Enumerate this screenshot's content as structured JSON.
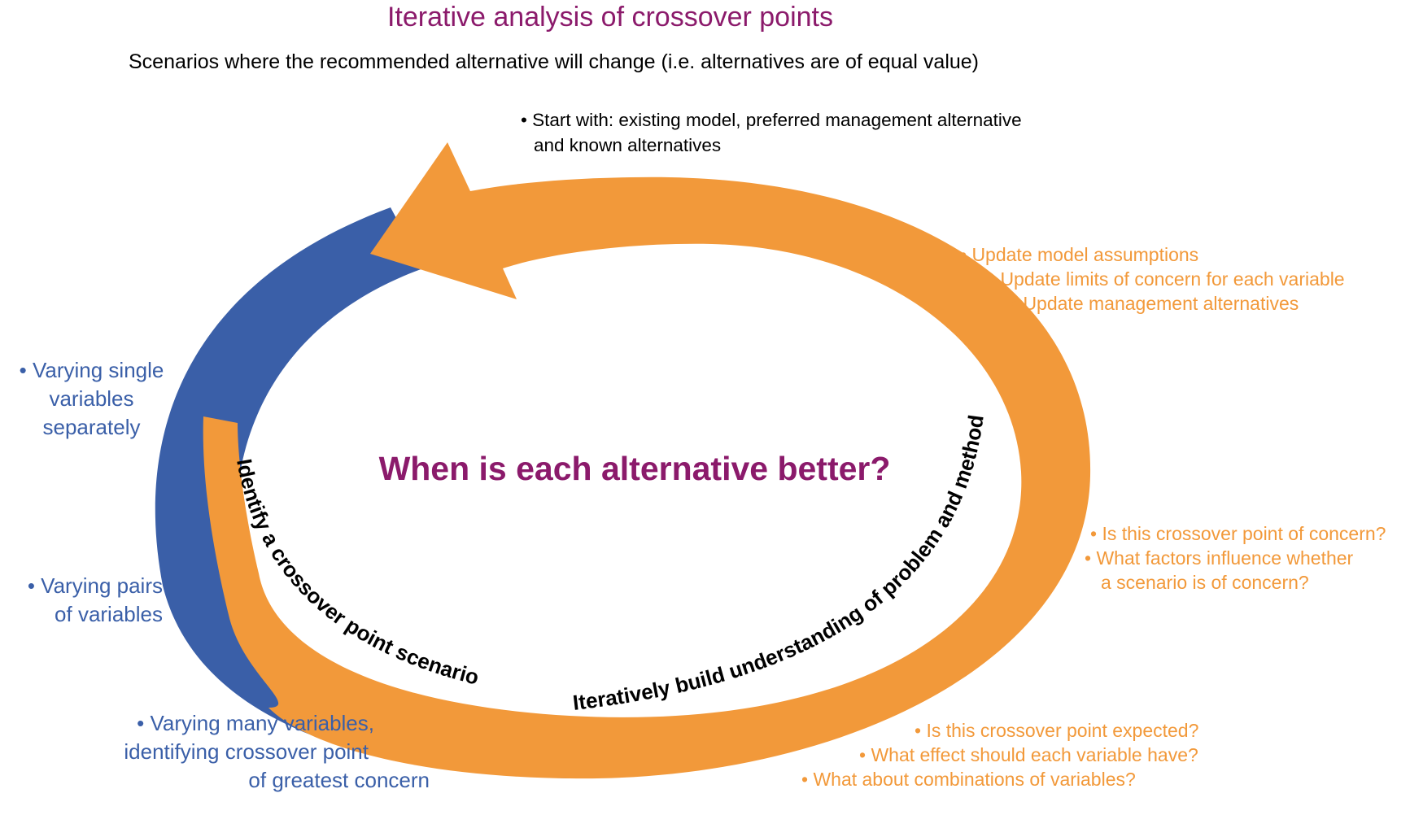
{
  "title": "Iterative analysis of crossover points",
  "subtitle": "Scenarios where the recommended alternative will change (i.e. alternatives are of equal value)",
  "start_note": {
    "line1": "• Start with: existing model, preferred management alternative",
    "line2": "and known alternatives"
  },
  "central_question": "When is each alternative better?",
  "arc_labels": {
    "left": "Identify a crossover point scenario",
    "right": "Iteratively build understanding of problem and method"
  },
  "update_list": [
    "• Update model assumptions",
    "• Update limits of concern for each variable",
    "• Update management alternatives"
  ],
  "concern_list": [
    "• Is this crossover point of concern?",
    "• What factors influence whether",
    "a scenario is of concern?"
  ],
  "expected_list": [
    "• Is this crossover point expected?",
    "• What effect should each variable have?",
    "• What about combinations of variables?"
  ],
  "blue_single": [
    "• Varying single",
    "variables",
    "separately"
  ],
  "blue_pairs": [
    "• Varying pairs",
    "of variables"
  ],
  "blue_many": [
    "• Varying many variables,",
    "identifying crossover point",
    "of greatest concern"
  ],
  "colors": {
    "title": "#8B1A6B",
    "orange": "#F2993A",
    "blue": "#3A5FA8",
    "black": "#000000"
  }
}
